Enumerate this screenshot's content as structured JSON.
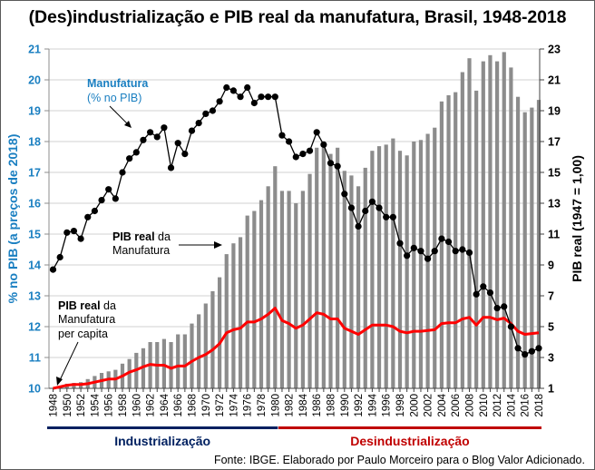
{
  "chart_data": {
    "type": "bar+line",
    "title": "(Des)industrialização e PIB real da manufatura, Brasil, 1948-2018",
    "ylabel_left": "% no PIB (a preços de 2018)",
    "ylabel_right": "PIB real (1947 = 1,00)",
    "ylim_left": [
      10,
      21
    ],
    "ylim_right": [
      1,
      23
    ],
    "yticks_left": [
      "10",
      "11",
      "12",
      "13",
      "14",
      "15",
      "16",
      "17",
      "18",
      "19",
      "20",
      "21"
    ],
    "yticks_right": [
      "1",
      "3",
      "5",
      "7",
      "9",
      "11",
      "13",
      "15",
      "17",
      "19",
      "21",
      "23"
    ],
    "grid": true,
    "x": [
      1948,
      1949,
      1950,
      1951,
      1952,
      1953,
      1954,
      1955,
      1956,
      1957,
      1958,
      1959,
      1960,
      1961,
      1962,
      1963,
      1964,
      1965,
      1966,
      1967,
      1968,
      1969,
      1970,
      1971,
      1972,
      1973,
      1974,
      1975,
      1976,
      1977,
      1978,
      1979,
      1980,
      1981,
      1982,
      1983,
      1984,
      1985,
      1986,
      1987,
      1988,
      1989,
      1990,
      1991,
      1992,
      1993,
      1994,
      1995,
      1996,
      1997,
      1998,
      1999,
      2000,
      2001,
      2002,
      2003,
      2004,
      2005,
      2006,
      2007,
      2008,
      2009,
      2010,
      2011,
      2012,
      2013,
      2014,
      2015,
      2016,
      2017,
      2018
    ],
    "xtick_labels": [
      "1948",
      "1950",
      "1952",
      "1954",
      "1956",
      "1958",
      "1960",
      "1962",
      "1964",
      "1966",
      "1968",
      "1970",
      "1972",
      "1974",
      "1976",
      "1978",
      "1980",
      "1982",
      "1984",
      "1986",
      "1988",
      "1990",
      "1992",
      "1994",
      "1996",
      "1998",
      "2000",
      "2002",
      "2004",
      "2006",
      "2008",
      "2010",
      "2012",
      "2014",
      "2016",
      "2018"
    ],
    "series": [
      {
        "name": "PIB real da Manufatura",
        "type": "bar",
        "axis": "right",
        "color": "#8c8c8c",
        "values": [
          1.0,
          1.05,
          1.3,
          1.35,
          1.4,
          1.6,
          1.8,
          2.0,
          2.1,
          2.2,
          2.6,
          2.9,
          3.3,
          3.6,
          4.0,
          4.0,
          4.2,
          4.0,
          4.5,
          4.5,
          5.2,
          5.8,
          6.5,
          7.3,
          8.2,
          9.7,
          10.4,
          10.8,
          12.2,
          12.5,
          13.2,
          14.1,
          15.4,
          13.8,
          13.8,
          13.0,
          13.8,
          14.9,
          16.6,
          16.6,
          16.2,
          16.6,
          15.1,
          14.8,
          14.1,
          15.3,
          16.4,
          16.7,
          16.8,
          17.2,
          16.4,
          16.1,
          17.0,
          17.1,
          17.5,
          17.9,
          19.6,
          20.0,
          20.2,
          21.5,
          22.4,
          20.3,
          22.2,
          22.6,
          22.2,
          22.8,
          21.8,
          19.9,
          18.9,
          19.2,
          19.7
        ]
      },
      {
        "name": "Manufatura (% no PIB)",
        "type": "line",
        "axis": "left",
        "color": "#000000",
        "marker": "circle",
        "values": [
          13.85,
          14.25,
          15.05,
          15.1,
          14.85,
          15.55,
          15.75,
          16.1,
          16.45,
          16.15,
          17.0,
          17.45,
          17.65,
          18.05,
          18.3,
          18.15,
          18.45,
          17.15,
          17.95,
          17.6,
          18.35,
          18.6,
          18.9,
          19.0,
          19.3,
          19.75,
          19.65,
          19.45,
          19.75,
          19.25,
          19.45,
          19.45,
          19.45,
          18.2,
          18.0,
          17.5,
          17.6,
          17.7,
          18.3,
          17.9,
          17.3,
          17.2,
          16.3,
          15.85,
          15.25,
          15.75,
          16.05,
          15.85,
          15.55,
          15.55,
          14.7,
          14.3,
          14.55,
          14.45,
          14.2,
          14.45,
          14.85,
          14.75,
          14.45,
          14.5,
          14.4,
          13.05,
          13.3,
          13.1,
          12.6,
          12.65,
          12.0,
          11.3,
          11.1,
          11.2,
          11.3
        ]
      },
      {
        "name": "PIB real da Manufatura per capita",
        "type": "line",
        "axis": "right",
        "color": "#ff0000",
        "values": [
          1.0,
          1.1,
          1.2,
          1.25,
          1.25,
          1.3,
          1.4,
          1.5,
          1.6,
          1.6,
          1.8,
          2.05,
          2.2,
          2.4,
          2.55,
          2.5,
          2.5,
          2.3,
          2.45,
          2.45,
          2.75,
          3.0,
          3.2,
          3.5,
          3.9,
          4.6,
          4.8,
          4.9,
          5.3,
          5.3,
          5.5,
          5.8,
          6.2,
          5.4,
          5.2,
          4.9,
          5.1,
          5.5,
          5.9,
          5.8,
          5.5,
          5.5,
          4.9,
          4.7,
          4.5,
          4.8,
          5.1,
          5.1,
          5.1,
          5.0,
          4.7,
          4.6,
          4.7,
          4.7,
          4.75,
          4.8,
          5.2,
          5.25,
          5.25,
          5.5,
          5.6,
          5.1,
          5.6,
          5.6,
          5.45,
          5.55,
          5.2,
          4.7,
          4.5,
          4.55,
          4.6
        ]
      }
    ],
    "annotations": [
      {
        "bold": "Manufatura",
        "rest": "(% no PIB)",
        "color": "#1a7fc1"
      },
      {
        "bold": "PIB real",
        "rest1": " da",
        "rest2": "Manufatura"
      },
      {
        "bold": "PIB real",
        "rest1": " da",
        "rest2": "Manufatura",
        "rest3": "per capita"
      }
    ],
    "periods": [
      {
        "label": "Industrialização",
        "from": 1948,
        "to": 1980,
        "color": "#002060"
      },
      {
        "label": "Desindustrialização",
        "from": 1981,
        "to": 2018,
        "color": "#c00000"
      }
    ],
    "source": "Fonte: IBGE. Elaborado por Paulo Morceiro para o Blog Valor Adicionado."
  }
}
